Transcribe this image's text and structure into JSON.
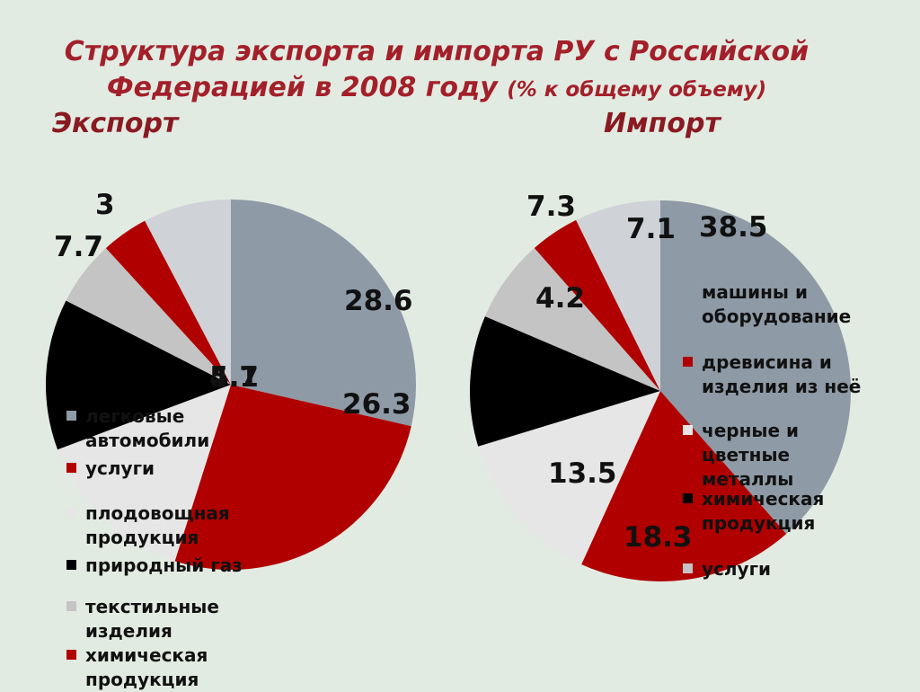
{
  "title": {
    "line1": "Структура экспорта и импорта РУ с Российской",
    "line2_main": "Федерацией в 2008 году",
    "line2_sub": "(% к общему объему)"
  },
  "chart_data": [
    {
      "type": "pie",
      "title": "Экспорт",
      "slices": [
        {
          "label": "легковые автомобили",
          "value": 28.6,
          "color": "#8e9aa6"
        },
        {
          "label": "услуги",
          "value": 26.3,
          "color": "#b00000"
        },
        {
          "label": "плодовощная продукция",
          "value": 14.4,
          "color": "#e6e6e6"
        },
        {
          "label": "природный газ",
          "value": 13.2,
          "color": "#000000"
        },
        {
          "label": "текстильные изделия",
          "value": 5.7,
          "color": "#c4c4c4"
        },
        {
          "label": "химическая продукция",
          "value": 4.1,
          "color": "#b00000"
        },
        {
          "label": "",
          "value": 7.7,
          "color": "#cfd3d8"
        }
      ],
      "visible_labels": [
        "28.6",
        "26.3",
        "5.7",
        "4.1",
        "7.7",
        "3"
      ]
    },
    {
      "type": "pie",
      "title": "Импорт",
      "slices": [
        {
          "label": "машины и оборудование",
          "value": 38.5,
          "color": "#8e9aa6"
        },
        {
          "label": "древисина и изделия из неё",
          "value": 18.3,
          "color": "#b00000"
        },
        {
          "label": "черные и цветные металлы",
          "value": 13.5,
          "color": "#e6e6e6"
        },
        {
          "label": "химическая продукция",
          "value": 11.1,
          "color": "#000000"
        },
        {
          "label": "услуги",
          "value": 7.1,
          "color": "#c4c4c4"
        },
        {
          "label": "",
          "value": 4.2,
          "color": "#b00000"
        },
        {
          "label": "",
          "value": 7.3,
          "color": "#cfd3d8"
        }
      ],
      "visible_labels": [
        "38.5",
        "18.3",
        "13.5",
        "7.1",
        "4.2",
        "7.3"
      ]
    }
  ],
  "legend_export": [
    {
      "text": "легковые автомобили",
      "color": "#8e9aa6"
    },
    {
      "text": "услуги",
      "color": "#b00000"
    },
    {
      "text": "плодовощная продукция",
      "color": "#e6e6e6"
    },
    {
      "text": "природный газ",
      "color": "#000000"
    },
    {
      "text": "текстильные изделия",
      "color": "#c4c4c4"
    },
    {
      "text": "химическая продукция",
      "color": "#b00000"
    }
  ],
  "legend_import": [
    {
      "text": "машины и оборудование",
      "color": "#8e9aa6"
    },
    {
      "text": "древисина и изделия из неё",
      "color": "#b00000"
    },
    {
      "text": "черные и цветные металлы",
      "color": "#e6e6e6"
    },
    {
      "text": "химическая продукция",
      "color": "#000000"
    },
    {
      "text": "услуги",
      "color": "#c4c4c4"
    }
  ]
}
